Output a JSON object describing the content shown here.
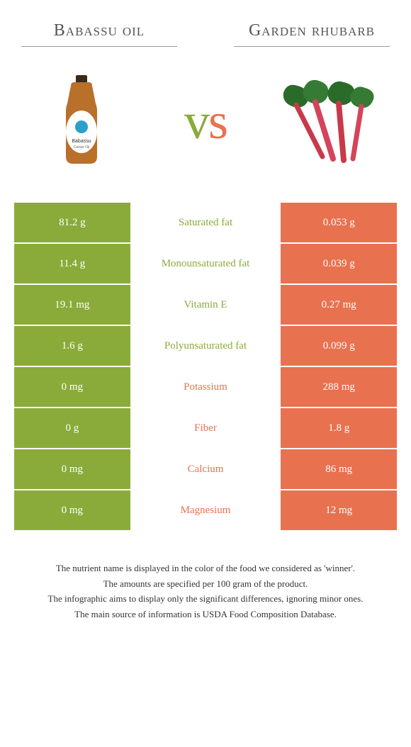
{
  "colors": {
    "left": "#8aab3a",
    "right": "#e8714f",
    "vs_left": "#8aab3a",
    "vs_right": "#e8714f"
  },
  "header": {
    "left": "Babassu oil",
    "right": "Garden rhubarb"
  },
  "vs": "vs",
  "images": {
    "left_alt": "babassu-oil-bottle",
    "right_alt": "rhubarb-stalks"
  },
  "rows": [
    {
      "left_val": "81.2 g",
      "label": "Saturated fat",
      "winner": "left",
      "right_val": "0.053 g"
    },
    {
      "left_val": "11.4 g",
      "label": "Monounsaturated fat",
      "winner": "left",
      "right_val": "0.039 g"
    },
    {
      "left_val": "19.1 mg",
      "label": "Vitamin E",
      "winner": "left",
      "right_val": "0.27 mg"
    },
    {
      "left_val": "1.6 g",
      "label": "Polyunsaturated fat",
      "winner": "left",
      "right_val": "0.099 g"
    },
    {
      "left_val": "0 mg",
      "label": "Potassium",
      "winner": "right",
      "right_val": "288 mg"
    },
    {
      "left_val": "0 g",
      "label": "Fiber",
      "winner": "right",
      "right_val": "1.8 g"
    },
    {
      "left_val": "0 mg",
      "label": "Calcium",
      "winner": "right",
      "right_val": "86 mg"
    },
    {
      "left_val": "0 mg",
      "label": "Magnesium",
      "winner": "right",
      "right_val": "12 mg"
    }
  ],
  "footnotes": [
    "The nutrient name is displayed in the color of the food we considered as 'winner'.",
    "The amounts are specified per 100 gram of the product.",
    "The infographic aims to display only the significant differences, ignoring minor ones.",
    "The main source of information is USDA Food Composition Database."
  ]
}
